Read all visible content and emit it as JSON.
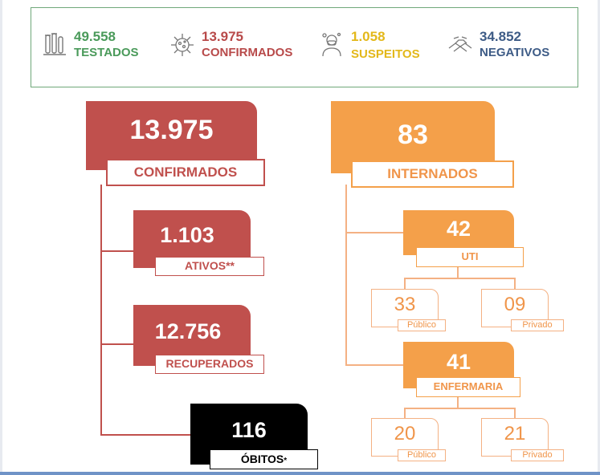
{
  "summary": {
    "tested": {
      "number": "49.558",
      "label": "TESTADOS",
      "icon": "test-tubes-icon"
    },
    "confirmed": {
      "number": "13.975",
      "label": "CONFIRMADOS",
      "icon": "virus-icon"
    },
    "suspected": {
      "number": "1.058",
      "label": "SUSPEITOS",
      "icon": "masked-person-icon"
    },
    "negative": {
      "number": "34.852",
      "label": "NEGATIVOS",
      "icon": "handshake-icon"
    }
  },
  "confirmed": {
    "number": "13.975",
    "label": "CONFIRMADOS"
  },
  "active": {
    "number": "1.103",
    "label": "ATIVOS**"
  },
  "recovered": {
    "number": "12.756",
    "label": "RECUPERADOS"
  },
  "deaths": {
    "number": "116",
    "label": "ÓBITOS",
    "marker": "*"
  },
  "hospitalized": {
    "number": "83",
    "label": "INTERNADOS"
  },
  "icu": {
    "number": "42",
    "label": "UTI",
    "public_number": "33",
    "public_label": "Público",
    "private_number": "09",
    "private_label": "Privado"
  },
  "ward": {
    "number": "41",
    "label": "ENFERMARIA",
    "public_number": "20",
    "public_label": "Público",
    "private_number": "21",
    "private_label": "Privado"
  },
  "colors": {
    "red": "#c0504d",
    "orange": "#f4a04a",
    "green": "#4a9a5a",
    "yellow": "#e3b81a",
    "blue": "#3d5b86",
    "black": "#000000"
  }
}
